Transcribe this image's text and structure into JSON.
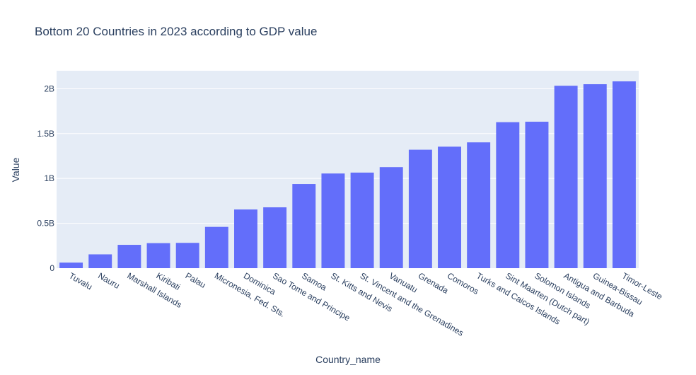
{
  "chart_data": {
    "type": "bar",
    "title": "Bottom 20 Countries in 2023 according to GDP value",
    "xlabel": "Country_name",
    "ylabel": "Value",
    "ylim": [
      0,
      2200000000
    ],
    "yticks": [
      0,
      500000000,
      1000000000,
      1500000000,
      2000000000
    ],
    "ytick_labels": [
      "0",
      "0.5B",
      "1B",
      "1.5B",
      "2B"
    ],
    "categories": [
      "Tuvalu",
      "Nauru",
      "Marshall Islands",
      "Kiribati",
      "Palau",
      "Micronesia, Fed. Sts.",
      "Dominica",
      "Sao Tome and Principe",
      "Samoa",
      "St. Kitts and Nevis",
      "St. Vincent and the Grenadines",
      "Vanuatu",
      "Grenada",
      "Comoros",
      "Turks and Caicos Islands",
      "Sint Maarten (Dutch part)",
      "Solomon Islands",
      "Antigua and Barbuda",
      "Guinea-Bissau",
      "Timor-Leste"
    ],
    "values": [
      62000000,
      154000000,
      260000000,
      279000000,
      282000000,
      460000000,
      654000000,
      678000000,
      938000000,
      1055000000,
      1065000000,
      1126000000,
      1320000000,
      1354000000,
      1402000000,
      1627000000,
      1632000000,
      2033000000,
      2050000000,
      2082000000
    ],
    "colors": {
      "bar": "#636efa",
      "plot_bg": "#e5ecf6",
      "grid": "#ffffff",
      "text": "#2a3f5f"
    }
  }
}
